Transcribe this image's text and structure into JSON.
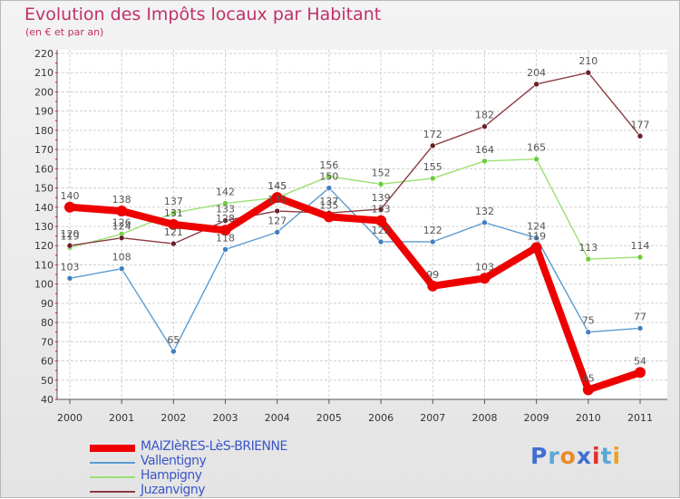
{
  "header": {
    "title": "Evolution des Impôts locaux par Habitant",
    "subtitle": "(en € et par an)"
  },
  "brand": {
    "logo_letters": [
      "P",
      "r",
      "o",
      "x",
      "i",
      "t",
      "i"
    ],
    "logo_colors": [
      "#3f6fd0",
      "#58a8d8",
      "#e88a28",
      "#3f6fd0",
      "#e03030",
      "#58a8d8",
      "#f0a020"
    ]
  },
  "chart_data": {
    "type": "line",
    "title": "Evolution des Impôts locaux par Habitant",
    "subtitle": "(en € et par an)",
    "xlabel": "",
    "ylabel": "",
    "x": [
      "2000",
      "2001",
      "2002",
      "2003",
      "2004",
      "2005",
      "2006",
      "2007",
      "2008",
      "2009",
      "2010",
      "2011"
    ],
    "ylim": [
      40,
      220
    ],
    "yticks": [
      40,
      50,
      60,
      70,
      80,
      90,
      100,
      110,
      120,
      130,
      140,
      150,
      160,
      170,
      180,
      190,
      200,
      210,
      220
    ],
    "grid": true,
    "legend_position": "bottom-left",
    "series": [
      {
        "name": "Vallentigny",
        "color": "#5b9bd0",
        "marker": "#3f7fbf",
        "values": [
          103,
          108,
          65,
          118,
          127,
          150,
          122,
          122,
          132,
          124,
          75,
          77
        ]
      },
      {
        "name": "Hampigny",
        "color": "#9be070",
        "marker": "#6ccc3c",
        "values": [
          119,
          126,
          137,
          142,
          145,
          156,
          152,
          155,
          164,
          165,
          113,
          114
        ]
      },
      {
        "name": "Juzanvigny",
        "color": "#8a3a40",
        "marker": "#6a1f26",
        "values": [
          120,
          124,
          121,
          133,
          138,
          137,
          139,
          172,
          182,
          204,
          210,
          177
        ]
      },
      {
        "name": "MAIZIèRES-LèS-BRIENNE",
        "color": "#ee0000",
        "marker": "#ee0000",
        "values": [
          140,
          138,
          131,
          128,
          145,
          135,
          133,
          99,
          103,
          119,
          45,
          54
        ]
      }
    ],
    "legend_order": [
      3,
      0,
      1,
      2
    ]
  }
}
